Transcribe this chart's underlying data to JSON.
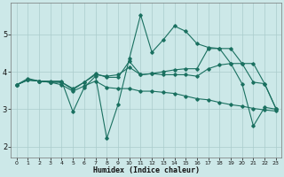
{
  "xlabel": "Humidex (Indice chaleur)",
  "bg_color": "#cce8e8",
  "grid_color": "#aacccc",
  "line_color": "#1a7060",
  "xlim": [
    -0.5,
    23.5
  ],
  "ylim": [
    1.7,
    5.85
  ],
  "xticks": [
    0,
    1,
    2,
    3,
    4,
    5,
    6,
    7,
    8,
    9,
    10,
    11,
    12,
    13,
    14,
    15,
    16,
    17,
    18,
    19,
    20,
    21,
    22,
    23
  ],
  "yticks": [
    2,
    3,
    4,
    5
  ],
  "lines": [
    {
      "x": [
        0,
        1,
        2,
        3,
        4,
        5,
        6,
        7,
        8,
        9,
        10,
        11,
        12,
        13,
        14,
        15,
        16,
        17,
        18,
        19,
        20,
        21,
        22,
        23
      ],
      "y": [
        3.65,
        3.82,
        3.75,
        3.75,
        3.75,
        2.93,
        3.58,
        3.88,
        2.22,
        3.12,
        4.35,
        5.52,
        4.52,
        4.85,
        5.22,
        5.08,
        4.75,
        4.65,
        4.62,
        4.22,
        3.68,
        2.55,
        3.05,
        3.0
      ]
    },
    {
      "x": [
        0,
        1,
        2,
        3,
        4,
        5,
        6,
        7,
        8,
        9,
        10,
        11,
        12,
        13,
        14,
        15,
        16,
        17,
        18,
        19,
        20,
        21,
        22,
        23
      ],
      "y": [
        3.65,
        3.78,
        3.75,
        3.72,
        3.72,
        3.55,
        3.72,
        3.92,
        3.88,
        3.92,
        4.12,
        3.92,
        3.95,
        4.0,
        4.05,
        4.08,
        4.08,
        4.62,
        4.62,
        4.62,
        4.22,
        3.72,
        3.68,
        3.02
      ]
    },
    {
      "x": [
        0,
        1,
        2,
        3,
        4,
        5,
        6,
        7,
        8,
        9,
        10,
        11,
        12,
        13,
        14,
        15,
        16,
        17,
        18,
        19,
        20,
        21,
        22,
        23
      ],
      "y": [
        3.65,
        3.78,
        3.75,
        3.72,
        3.72,
        3.52,
        3.72,
        3.95,
        3.85,
        3.85,
        4.28,
        3.92,
        3.95,
        3.92,
        3.92,
        3.92,
        3.88,
        4.08,
        4.18,
        4.22,
        4.22,
        4.22,
        3.68,
        3.02
      ]
    },
    {
      "x": [
        0,
        1,
        2,
        3,
        4,
        5,
        6,
        7,
        8,
        9,
        10,
        11,
        12,
        13,
        14,
        15,
        16,
        17,
        18,
        19,
        20,
        21,
        22,
        23
      ],
      "y": [
        3.65,
        3.78,
        3.75,
        3.72,
        3.65,
        3.48,
        3.62,
        3.75,
        3.58,
        3.55,
        3.55,
        3.48,
        3.48,
        3.45,
        3.42,
        3.35,
        3.28,
        3.25,
        3.18,
        3.12,
        3.08,
        3.02,
        2.98,
        2.95
      ]
    }
  ]
}
